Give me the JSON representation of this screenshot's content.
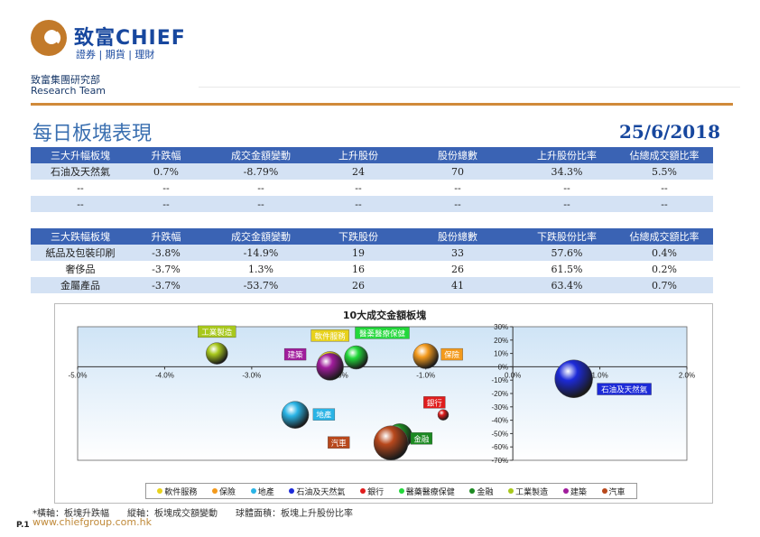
{
  "brand": {
    "name": "致富CHIEF",
    "sub": "證券 | 期貨 | 理財"
  },
  "org": {
    "line1": "致富集團研究部",
    "line2": "Research Team"
  },
  "page": {
    "title": "每日板塊表現",
    "date": "25/6/2018",
    "footnote": "*橫軸：板塊升跌幅　　縱軸：板塊成交額變動　　球體面積：板塊上升股份比率",
    "url": "www.chiefgroup.com.hk",
    "page_no": "P.1"
  },
  "colors": {
    "header_bg": "#3a63b4",
    "alt_row": "#d4e2f4",
    "accent": "#d08a3a",
    "brand": "#17479e"
  },
  "table_up": {
    "headers": [
      "三大升幅板塊",
      "升跌幅",
      "成交金額變動",
      "上升股份",
      "股份總數",
      "上升股份比率",
      "佔總成交額比率"
    ],
    "rows": [
      [
        "石油及天然氣",
        "0.7%",
        "-8.79%",
        "24",
        "70",
        "34.3%",
        "5.5%"
      ],
      [
        "--",
        "--",
        "--",
        "--",
        "--",
        "--",
        "--"
      ],
      [
        "--",
        "--",
        "--",
        "--",
        "--",
        "--",
        "--"
      ]
    ]
  },
  "table_down": {
    "headers": [
      "三大跌幅板塊",
      "升跌幅",
      "成交金額變動",
      "下跌股份",
      "股份總數",
      "下跌股份比率",
      "佔總成交額比率"
    ],
    "rows": [
      [
        "紙品及包裝印刷",
        "-3.8%",
        "-14.9%",
        "19",
        "33",
        "57.6%",
        "0.4%"
      ],
      [
        "奢侈品",
        "-3.7%",
        "1.3%",
        "16",
        "26",
        "61.5%",
        "0.2%"
      ],
      [
        "金屬產品",
        "-3.7%",
        "-53.7%",
        "26",
        "41",
        "63.4%",
        "0.7%"
      ]
    ]
  },
  "chart_data": {
    "type": "scatter",
    "title": "10大成交金額板塊",
    "xlim": [
      -5,
      2
    ],
    "ylim": [
      -70,
      30
    ],
    "x_ticks": [
      "-5.0%",
      "-4.0%",
      "-3.0%",
      "-2.0%",
      "-1.0%",
      "0.0%",
      "1.0%",
      "2.0%"
    ],
    "y_ticks": [
      "30%",
      "20%",
      "10%",
      "0%",
      "-10%",
      "-20%",
      "-30%",
      "-40%",
      "-50%",
      "-60%",
      "-70%"
    ],
    "grid": false,
    "legend_position": "bottom",
    "series": [
      {
        "name": "軟件服務",
        "x": -2.1,
        "y": 2,
        "r": 14,
        "color": "#e8d21c"
      },
      {
        "name": "保險",
        "x": -1.0,
        "y": 8,
        "r": 14,
        "color": "#f39a1c"
      },
      {
        "name": "地產",
        "x": -2.5,
        "y": -36,
        "r": 15,
        "color": "#2ab4e6"
      },
      {
        "name": "石油及天然氣",
        "x": 0.7,
        "y": -9,
        "r": 21,
        "color": "#1c2ad8"
      },
      {
        "name": "銀行",
        "x": -0.8,
        "y": -36,
        "r": 6,
        "color": "#e01c1c"
      },
      {
        "name": "醫藥醫療保健",
        "x": -1.8,
        "y": 7,
        "r": 13,
        "color": "#22d83a"
      },
      {
        "name": "金融",
        "x": -1.3,
        "y": -52,
        "r": 14,
        "color": "#1c8a22"
      },
      {
        "name": "工業製造",
        "x": -3.4,
        "y": 10,
        "r": 12,
        "color": "#a8c81c"
      },
      {
        "name": "建築",
        "x": -2.1,
        "y": 0,
        "r": 15,
        "color": "#a01c9c"
      },
      {
        "name": "汽車",
        "x": -1.4,
        "y": -57,
        "r": 19,
        "color": "#b8481c"
      }
    ],
    "labels": [
      {
        "text": "工業製造",
        "x": -3.4,
        "y": 26,
        "bg": "#a8c81c"
      },
      {
        "text": "軟件服務",
        "x": -2.1,
        "y": 23,
        "bg": "#e8d21c"
      },
      {
        "text": "醫藥醫療保健",
        "x": -1.5,
        "y": 25,
        "bg": "#22d83a"
      },
      {
        "text": "建築",
        "x": -2.5,
        "y": 9,
        "bg": "#a01c9c"
      },
      {
        "text": "保險",
        "x": -0.7,
        "y": 9,
        "bg": "#f39a1c"
      },
      {
        "text": "石油及天然氣",
        "x": 1.28,
        "y": -17,
        "bg": "#1c2ad8"
      },
      {
        "text": "銀行",
        "x": -0.9,
        "y": -27,
        "bg": "#e01c1c"
      },
      {
        "text": "地產",
        "x": -2.17,
        "y": -36,
        "bg": "#2ab4e6"
      },
      {
        "text": "汽車",
        "x": -2.0,
        "y": -57,
        "bg": "#b8481c"
      },
      {
        "text": "金融",
        "x": -1.05,
        "y": -54,
        "bg": "#1c8a22"
      }
    ]
  }
}
